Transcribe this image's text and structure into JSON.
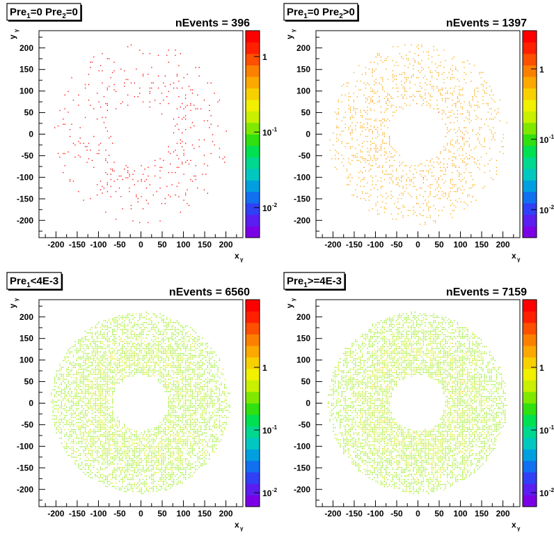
{
  "chart_data": [
    {
      "type": "heatmap",
      "title_parts": [
        [
          "Pre",
          "1",
          "=0 Pre",
          "2",
          "=0"
        ]
      ],
      "nevents_label": "nEvents = 396",
      "events": 396,
      "xlabel": "x",
      "xlabel_sub": "γ",
      "ylabel": "y",
      "ylabel_sub": "γ",
      "xlim": [
        -240,
        240
      ],
      "ylim": [
        -240,
        240
      ],
      "xticks": [
        -200,
        -150,
        -100,
        -50,
        0,
        50,
        100,
        150,
        200
      ],
      "yticks": [
        -200,
        -150,
        -100,
        -50,
        0,
        50,
        100,
        150,
        200
      ],
      "ring": {
        "inner_radius": 65,
        "outer_radius": 210
      },
      "colorbar": {
        "scale": "log",
        "range": [
          0.004,
          2.2
        ],
        "labels": [
          [
            "1",
            ""
          ],
          [
            "10",
            "-1"
          ],
          [
            "10",
            "-2"
          ]
        ],
        "label_values": [
          1,
          0.1,
          0.01
        ]
      }
    },
    {
      "type": "heatmap",
      "title_parts": [
        [
          "Pre",
          "1",
          "=0 Pre",
          "2",
          ">0"
        ]
      ],
      "nevents_label": "nEvents = 1397",
      "events": 1397,
      "xlabel": "x",
      "xlabel_sub": "γ",
      "ylabel": "y",
      "ylabel_sub": "γ",
      "xlim": [
        -240,
        240
      ],
      "ylim": [
        -240,
        240
      ],
      "xticks": [
        -200,
        -150,
        -100,
        -50,
        0,
        50,
        100,
        150,
        200
      ],
      "yticks": [
        -200,
        -150,
        -100,
        -50,
        0,
        50,
        100,
        150,
        200
      ],
      "ring": {
        "inner_radius": 65,
        "outer_radius": 210
      },
      "colorbar": {
        "scale": "log",
        "range": [
          0.004,
          3.5
        ],
        "labels": [
          [
            "1",
            ""
          ],
          [
            "10",
            "-1"
          ],
          [
            "10",
            "-2"
          ]
        ],
        "label_values": [
          1,
          0.1,
          0.01
        ]
      }
    },
    {
      "type": "heatmap",
      "title_parts": [
        [
          "Pre",
          "1",
          "<4E-3"
        ]
      ],
      "nevents_label": "nEvents = 6560",
      "events": 6560,
      "xlabel": "x",
      "xlabel_sub": "γ",
      "ylabel": "y",
      "ylabel_sub": "γ",
      "xlim": [
        -240,
        240
      ],
      "ylim": [
        -240,
        240
      ],
      "xticks": [
        -200,
        -150,
        -100,
        -50,
        0,
        50,
        100,
        150,
        200
      ],
      "yticks": [
        -200,
        -150,
        -100,
        -50,
        0,
        50,
        100,
        150,
        200
      ],
      "ring": {
        "inner_radius": 65,
        "outer_radius": 210
      },
      "colorbar": {
        "scale": "log",
        "range": [
          0.006,
          12
        ],
        "labels": [
          [
            "1",
            ""
          ],
          [
            "10",
            "-1"
          ],
          [
            "10",
            "-2"
          ]
        ],
        "label_values": [
          1,
          0.1,
          0.01
        ]
      }
    },
    {
      "type": "heatmap",
      "title_parts": [
        [
          "Pre",
          "1",
          ">=4E-3"
        ]
      ],
      "nevents_label": "nEvents = 7159",
      "events": 7159,
      "xlabel": "x",
      "xlabel_sub": "γ",
      "ylabel": "y",
      "ylabel_sub": "γ",
      "xlim": [
        -240,
        240
      ],
      "ylim": [
        -240,
        240
      ],
      "xticks": [
        -200,
        -150,
        -100,
        -50,
        0,
        50,
        100,
        150,
        200
      ],
      "yticks": [
        -200,
        -150,
        -100,
        -50,
        0,
        50,
        100,
        150,
        200
      ],
      "ring": {
        "inner_radius": 65,
        "outer_radius": 210
      },
      "colorbar": {
        "scale": "log",
        "range": [
          0.006,
          12
        ],
        "labels": [
          [
            "1",
            ""
          ],
          [
            "10",
            "-1"
          ],
          [
            "10",
            "-2"
          ]
        ],
        "label_values": [
          1,
          0.1,
          0.01
        ]
      }
    }
  ]
}
